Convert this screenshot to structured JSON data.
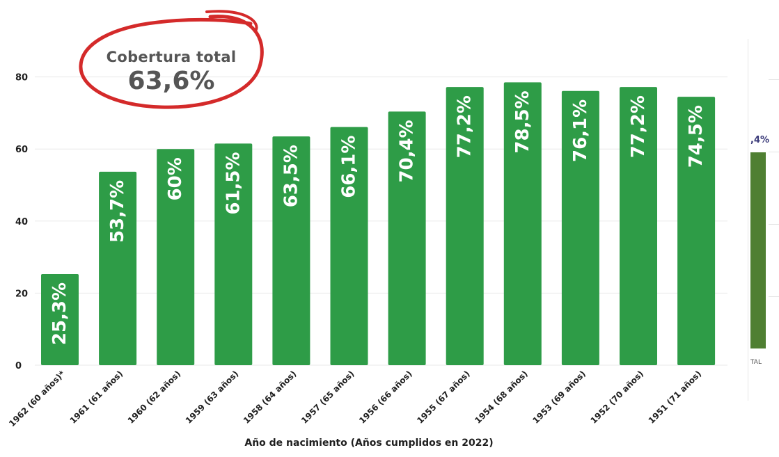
{
  "chart_data": {
    "type": "bar",
    "categories": [
      "1962 (60 años)*",
      "1961 (61 años)",
      "1960 (62 años)",
      "1959 (63 años)",
      "1958 (64 años)",
      "1957 (65 años)",
      "1956 (66 años)",
      "1955 (67 años)",
      "1954 (68 años)",
      "1953 (69 años)",
      "1952 (70 años)",
      "1951 (71 años)"
    ],
    "values": [
      25.3,
      53.7,
      60,
      61.5,
      63.5,
      66.1,
      70.4,
      77.2,
      78.5,
      76.1,
      77.2,
      74.5
    ],
    "value_labels": [
      "25,3%",
      "53,7%",
      "60%",
      "61,5%",
      "63,5%",
      "66,1%",
      "70,4%",
      "77,2%",
      "78,5%",
      "76,1%",
      "77,2%",
      "74,5%"
    ],
    "title": "",
    "xlabel": "Año de nacimiento  (Años cumplidos en 2022)",
    "ylabel": "",
    "ylim": [
      0,
      80
    ],
    "yticks": [
      0,
      20,
      40,
      60,
      80
    ],
    "grid": true,
    "bar_color": "#2e9c47",
    "label_color": "#ffffff"
  },
  "annotation": {
    "title": "Cobertura total",
    "value": "63,6%",
    "circle_color": "#d42a2a"
  },
  "side_panel": {
    "value_label": ",4%",
    "axis_label": "TAL",
    "bar_color": "#4f7f32"
  }
}
